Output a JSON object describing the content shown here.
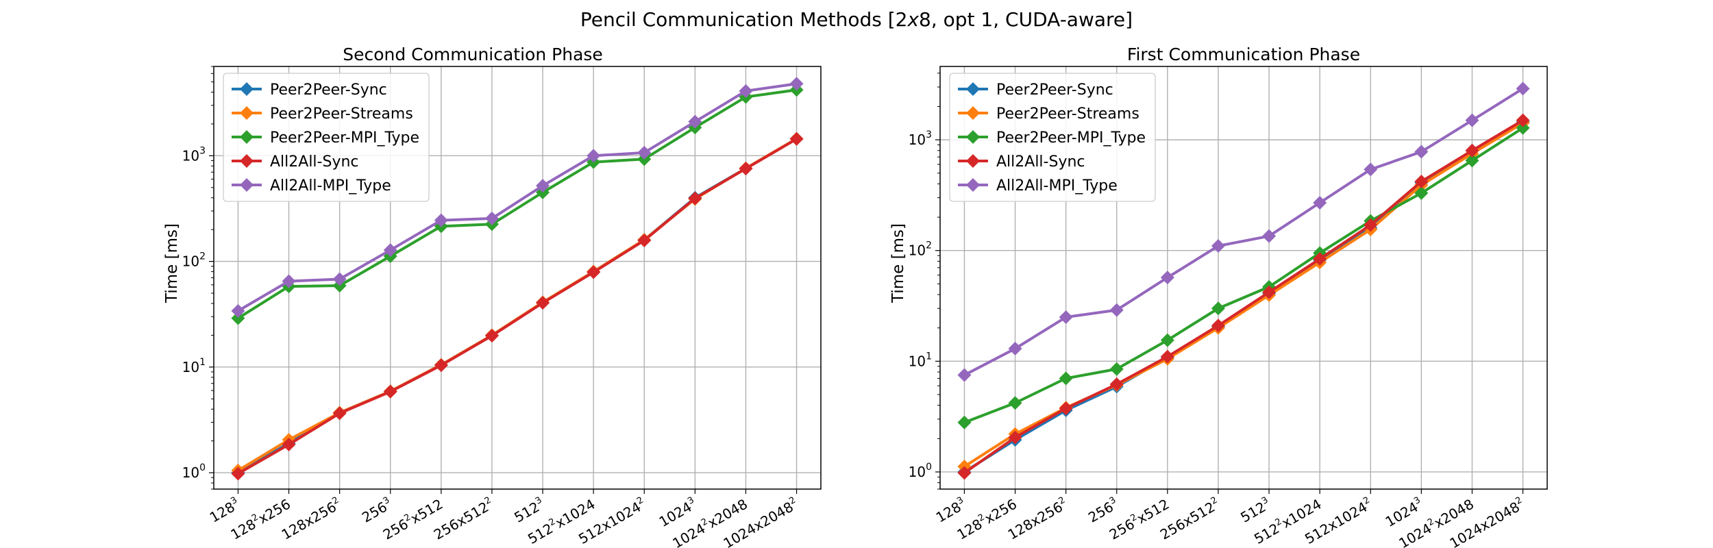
{
  "figure": {
    "title": "Pencil Communication Methods [2x8, opt 1, CUDA-aware]",
    "title_prefix": "Pencil Communication Methods [2",
    "title_italic": "x",
    "title_suffix": "8, opt 1, CUDA-aware]"
  },
  "chart_data": [
    {
      "type": "line",
      "title": "Second Communication Phase",
      "xlabel": "",
      "ylabel": "Time [ms]",
      "yscale": "log",
      "ylim": [
        0.7,
        7000
      ],
      "grid": true,
      "legend_position": "upper-left",
      "yticks": [
        1,
        10,
        100,
        1000
      ],
      "categories": [
        {
          "base": "128",
          "sup": "3",
          "rest": "",
          "sup2": ""
        },
        {
          "base": "128",
          "sup": "2",
          "rest": "x256",
          "sup2": ""
        },
        {
          "base": "128x256",
          "sup": "2",
          "rest": "",
          "sup2": ""
        },
        {
          "base": "256",
          "sup": "3",
          "rest": "",
          "sup2": ""
        },
        {
          "base": "256",
          "sup": "2",
          "rest": "x512",
          "sup2": ""
        },
        {
          "base": "256x512",
          "sup": "2",
          "rest": "",
          "sup2": ""
        },
        {
          "base": "512",
          "sup": "3",
          "rest": "",
          "sup2": ""
        },
        {
          "base": "512",
          "sup": "2",
          "rest": "x1024",
          "sup2": ""
        },
        {
          "base": "512x1024",
          "sup": "2",
          "rest": "",
          "sup2": ""
        },
        {
          "base": "1024",
          "sup": "3",
          "rest": "",
          "sup2": ""
        },
        {
          "base": "1024",
          "sup": "2",
          "rest": "x2048",
          "sup2": ""
        },
        {
          "base": "1024x2048",
          "sup": "2",
          "rest": "",
          "sup2": ""
        }
      ],
      "series": [
        {
          "name": "Peer2Peer-Sync",
          "color": "#1f77b4",
          "values": [
            1.0,
            1.9,
            3.7,
            5.9,
            10.5,
            20,
            41,
            80,
            160,
            400,
            760,
            1450
          ]
        },
        {
          "name": "Peer2Peer-Streams",
          "color": "#ff7f0e",
          "values": [
            1.05,
            2.05,
            3.7,
            5.9,
            10.5,
            20,
            41,
            80,
            160,
            390,
            760,
            1450
          ]
        },
        {
          "name": "Peer2Peer-MPI_Type",
          "color": "#2ca02c",
          "values": [
            29,
            58,
            59,
            112,
            215,
            225,
            450,
            870,
            930,
            1850,
            3600,
            4200
          ]
        },
        {
          "name": "All2All-Sync",
          "color": "#d62728",
          "values": [
            0.98,
            1.85,
            3.65,
            5.85,
            10.4,
            19.8,
            40.5,
            79,
            158,
            395,
            755,
            1440
          ]
        },
        {
          "name": "All2All-MPI_Type",
          "color": "#9467bd",
          "values": [
            34,
            65,
            68,
            128,
            245,
            255,
            520,
            1000,
            1070,
            2100,
            4100,
            4800
          ]
        }
      ]
    },
    {
      "type": "line",
      "title": "First Communication Phase",
      "xlabel": "",
      "ylabel": "Time [ms]",
      "yscale": "log",
      "ylim": [
        0.7,
        4600
      ],
      "grid": true,
      "legend_position": "upper-left",
      "yticks": [
        1,
        10,
        100,
        1000
      ],
      "categories": [
        {
          "base": "128",
          "sup": "3",
          "rest": "",
          "sup2": ""
        },
        {
          "base": "128",
          "sup": "2",
          "rest": "x256",
          "sup2": ""
        },
        {
          "base": "128x256",
          "sup": "2",
          "rest": "",
          "sup2": ""
        },
        {
          "base": "256",
          "sup": "3",
          "rest": "",
          "sup2": ""
        },
        {
          "base": "256",
          "sup": "2",
          "rest": "x512",
          "sup2": ""
        },
        {
          "base": "256x512",
          "sup": "2",
          "rest": "",
          "sup2": ""
        },
        {
          "base": "512",
          "sup": "3",
          "rest": "",
          "sup2": ""
        },
        {
          "base": "512",
          "sup": "2",
          "rest": "x1024",
          "sup2": ""
        },
        {
          "base": "512x1024",
          "sup": "2",
          "rest": "",
          "sup2": ""
        },
        {
          "base": "1024",
          "sup": "3",
          "rest": "",
          "sup2": ""
        },
        {
          "base": "1024",
          "sup": "2",
          "rest": "x2048",
          "sup2": ""
        },
        {
          "base": "1024x2048",
          "sup": "2",
          "rest": "",
          "sup2": ""
        }
      ],
      "series": [
        {
          "name": "Peer2Peer-Sync",
          "color": "#1f77b4",
          "values": [
            1.0,
            1.95,
            3.6,
            5.9,
            10.8,
            20.5,
            41,
            82,
            160,
            410,
            800,
            1450
          ]
        },
        {
          "name": "Peer2Peer-Streams",
          "color": "#ff7f0e",
          "values": [
            1.12,
            2.2,
            3.8,
            6.1,
            10.5,
            20,
            39.5,
            78,
            155,
            390,
            750,
            1420
          ]
        },
        {
          "name": "Peer2Peer-MPI_Type",
          "color": "#2ca02c",
          "values": [
            2.8,
            4.2,
            7.0,
            8.5,
            15.5,
            30,
            47,
            95,
            185,
            330,
            650,
            1280
          ]
        },
        {
          "name": "All2All-Sync",
          "color": "#d62728",
          "values": [
            0.98,
            2.05,
            3.75,
            6.2,
            11,
            21,
            42,
            84,
            170,
            420,
            800,
            1500
          ]
        },
        {
          "name": "All2All-MPI_Type",
          "color": "#9467bd",
          "values": [
            7.5,
            13,
            25,
            29,
            57,
            110,
            135,
            270,
            540,
            780,
            1500,
            2900
          ]
        }
      ]
    }
  ]
}
